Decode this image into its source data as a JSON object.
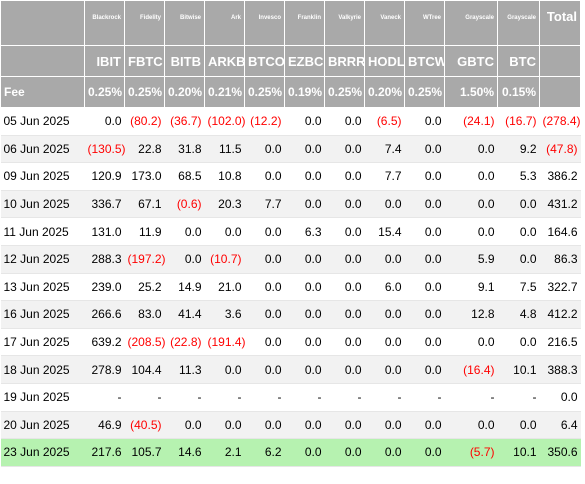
{
  "header": {
    "total_label": "Total",
    "fee_label": "Fee",
    "columns": [
      {
        "issuer": "Blackrock",
        "ticker": "IBIT",
        "fee": "0.25%"
      },
      {
        "issuer": "Fidelity",
        "ticker": "FBTC",
        "fee": "0.25%"
      },
      {
        "issuer": "Bitwise",
        "ticker": "BITB",
        "fee": "0.20%"
      },
      {
        "issuer": "Ark",
        "ticker": "ARKB",
        "fee": "0.21%"
      },
      {
        "issuer": "Invesco",
        "ticker": "BTCO",
        "fee": "0.25%"
      },
      {
        "issuer": "Franklin",
        "ticker": "EZBC",
        "fee": "0.19%"
      },
      {
        "issuer": "Valkyrie",
        "ticker": "BRRR",
        "fee": "0.25%"
      },
      {
        "issuer": "Vaneck",
        "ticker": "HODL",
        "fee": "0.20%"
      },
      {
        "issuer": "WTree",
        "ticker": "BTCW",
        "fee": "0.25%"
      },
      {
        "issuer": "Grayscale",
        "ticker": "GBTC",
        "fee": "1.50%"
      },
      {
        "issuer": "Grayscale",
        "ticker": "BTC",
        "fee": "0.15%"
      }
    ]
  },
  "rows": [
    {
      "date": "05 Jun 2025",
      "cells": [
        "0.0",
        "(80.2)",
        "(36.7)",
        "(102.0)",
        "(12.2)",
        "0.0",
        "0.0",
        "(6.5)",
        "0.0",
        "(24.1)",
        "(16.7)",
        "(278.4)"
      ]
    },
    {
      "date": "06 Jun 2025",
      "cells": [
        "(130.5)",
        "22.8",
        "31.8",
        "11.5",
        "0.0",
        "0.0",
        "0.0",
        "7.4",
        "0.0",
        "0.0",
        "9.2",
        "(47.8)"
      ]
    },
    {
      "date": "09 Jun 2025",
      "cells": [
        "120.9",
        "173.0",
        "68.5",
        "10.8",
        "0.0",
        "0.0",
        "0.0",
        "7.7",
        "0.0",
        "0.0",
        "5.3",
        "386.2"
      ]
    },
    {
      "date": "10 Jun 2025",
      "cells": [
        "336.7",
        "67.1",
        "(0.6)",
        "20.3",
        "7.7",
        "0.0",
        "0.0",
        "0.0",
        "0.0",
        "0.0",
        "0.0",
        "431.2"
      ]
    },
    {
      "date": "11 Jun 2025",
      "cells": [
        "131.0",
        "11.9",
        "0.0",
        "0.0",
        "0.0",
        "6.3",
        "0.0",
        "15.4",
        "0.0",
        "0.0",
        "0.0",
        "164.6"
      ]
    },
    {
      "date": "12 Jun 2025",
      "cells": [
        "288.3",
        "(197.2)",
        "0.0",
        "(10.7)",
        "0.0",
        "0.0",
        "0.0",
        "0.0",
        "0.0",
        "5.9",
        "0.0",
        "86.3"
      ]
    },
    {
      "date": "13 Jun 2025",
      "cells": [
        "239.0",
        "25.2",
        "14.9",
        "21.0",
        "0.0",
        "0.0",
        "0.0",
        "6.0",
        "0.0",
        "9.1",
        "7.5",
        "322.7"
      ]
    },
    {
      "date": "16 Jun 2025",
      "cells": [
        "266.6",
        "83.0",
        "41.4",
        "3.6",
        "0.0",
        "0.0",
        "0.0",
        "0.0",
        "0.0",
        "12.8",
        "4.8",
        "412.2"
      ]
    },
    {
      "date": "17 Jun 2025",
      "cells": [
        "639.2",
        "(208.5)",
        "(22.8)",
        "(191.4)",
        "0.0",
        "0.0",
        "0.0",
        "0.0",
        "0.0",
        "0.0",
        "0.0",
        "216.5"
      ]
    },
    {
      "date": "18 Jun 2025",
      "cells": [
        "278.9",
        "104.4",
        "11.3",
        "0.0",
        "0.0",
        "0.0",
        "0.0",
        "0.0",
        "0.0",
        "(16.4)",
        "10.1",
        "388.3"
      ]
    },
    {
      "date": "19 Jun 2025",
      "cells": [
        "-",
        "-",
        "-",
        "-",
        "-",
        "-",
        "-",
        "-",
        "-",
        "-",
        "-",
        "0.0"
      ]
    },
    {
      "date": "20 Jun 2025",
      "cells": [
        "46.9",
        "(40.5)",
        "0.0",
        "0.0",
        "0.0",
        "0.0",
        "0.0",
        "0.0",
        "0.0",
        "0.0",
        "0.0",
        "6.4"
      ]
    },
    {
      "date": "23 Jun 2025",
      "cells": [
        "217.6",
        "105.7",
        "14.6",
        "2.1",
        "6.2",
        "0.0",
        "0.0",
        "0.0",
        "0.0",
        "(5.7)",
        "10.1",
        "350.6"
      ],
      "highlight": true
    }
  ],
  "colors": {
    "header_bg": "#a9a9a9",
    "negative": "#ff0000",
    "highlight_row": "#b6f2b0",
    "stripe": "#f2f2f2"
  }
}
